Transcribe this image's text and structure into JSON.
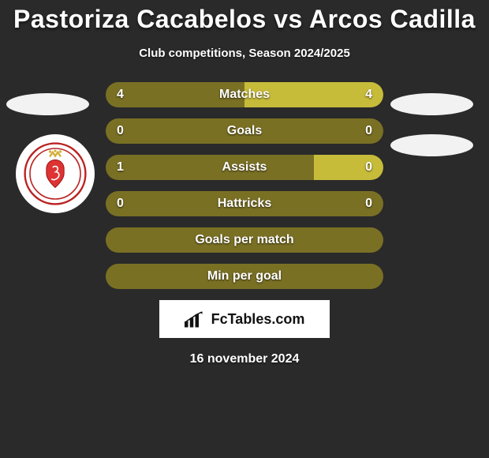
{
  "header": {
    "title": "Pastoriza Cacabelos vs Arcos Cadilla",
    "subtitle": "Club competitions, Season 2024/2025"
  },
  "colors": {
    "bar_dark": "#7a7024",
    "bar_light": "#c7bb3a",
    "background": "#2a2a2a",
    "oval": "#f2f2f2"
  },
  "bars": [
    {
      "label": "Matches",
      "left_value": "4",
      "right_value": "4",
      "left_pct": 50,
      "right_pct": 50,
      "show_values": true
    },
    {
      "label": "Goals",
      "left_value": "0",
      "right_value": "0",
      "left_pct": 100,
      "right_pct": 0,
      "show_values": true
    },
    {
      "label": "Assists",
      "left_value": "1",
      "right_value": "0",
      "left_pct": 75,
      "right_pct": 25,
      "show_values": true
    },
    {
      "label": "Hattricks",
      "left_value": "0",
      "right_value": "0",
      "left_pct": 100,
      "right_pct": 0,
      "show_values": true
    },
    {
      "label": "Goals per match",
      "left_value": "",
      "right_value": "",
      "left_pct": 100,
      "right_pct": 0,
      "show_values": false
    },
    {
      "label": "Min per goal",
      "left_value": "",
      "right_value": "",
      "left_pct": 100,
      "right_pct": 0,
      "show_values": false
    }
  ],
  "branding": {
    "text": "FcTables.com"
  },
  "footer": {
    "date": "16 november 2024"
  }
}
